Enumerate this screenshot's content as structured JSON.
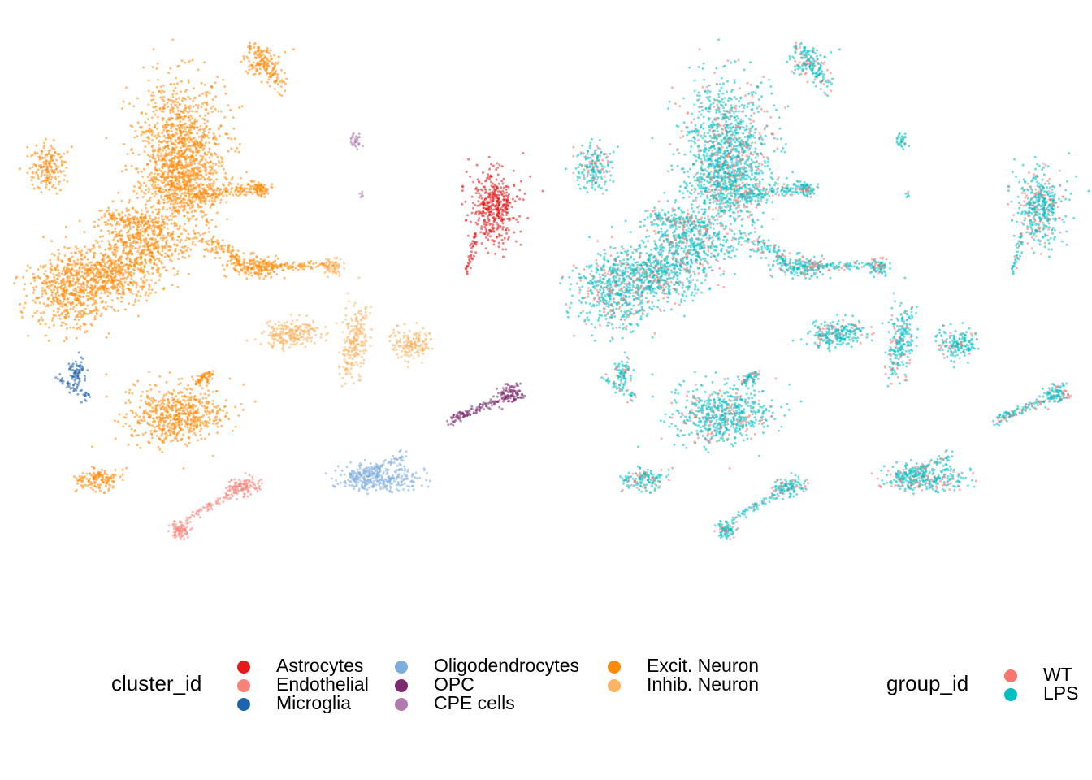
{
  "chart_data": [
    {
      "type": "scatter",
      "title": "",
      "xlabel": "",
      "ylabel": "",
      "grid": false,
      "legend_position": "bottom",
      "color_by": "cluster_id",
      "legend": {
        "title": "cluster_id",
        "entries": [
          {
            "label": "Astrocytes",
            "color": "#E41A1C"
          },
          {
            "label": "Endothelial",
            "color": "#F8827A"
          },
          {
            "label": "Microglia",
            "color": "#1F63A8"
          },
          {
            "label": "Oligodendrocytes",
            "color": "#7DADDD"
          },
          {
            "label": "OPC",
            "color": "#7B2A6E"
          },
          {
            "label": "CPE cells",
            "color": "#B07AAE"
          },
          {
            "label": "Excit. Neuron",
            "color": "#FF8A0A"
          },
          {
            "label": "Inhib. Neuron",
            "color": "#F9B565"
          }
        ]
      }
    },
    {
      "type": "scatter",
      "title": "",
      "xlabel": "",
      "ylabel": "",
      "grid": false,
      "legend_position": "bottom-right",
      "color_by": "group_id",
      "legend": {
        "title": "group_id",
        "entries": [
          {
            "label": "WT",
            "color": "#F8766D"
          },
          {
            "label": "LPS",
            "color": "#00BFC4"
          }
        ]
      }
    }
  ]
}
